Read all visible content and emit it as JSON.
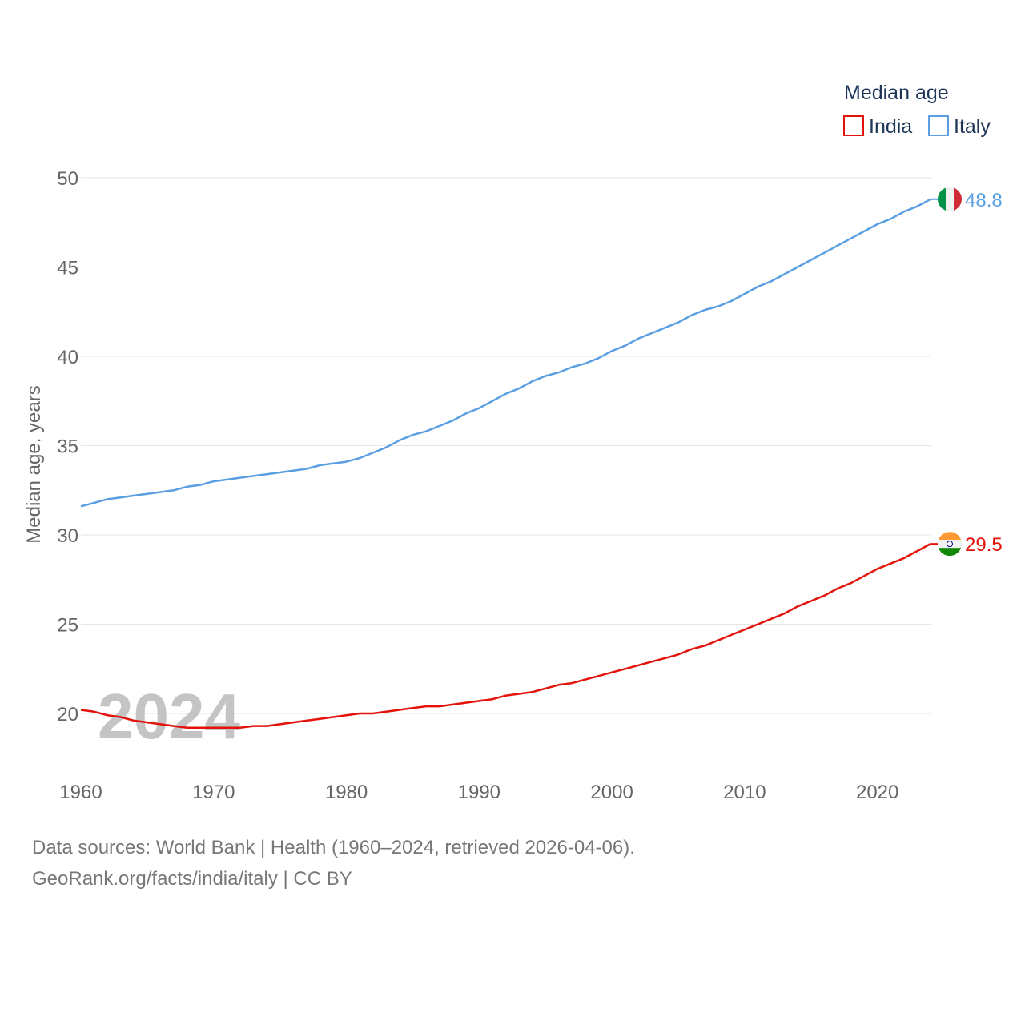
{
  "chart_data": {
    "type": "line",
    "title": "",
    "xlabel": "",
    "ylabel": "Median age, years",
    "xlim": [
      1960,
      2024
    ],
    "ylim": [
      18.5,
      50
    ],
    "yticks": [
      20,
      25,
      30,
      35,
      40,
      45,
      50
    ],
    "xticks": [
      1960,
      1970,
      1980,
      1990,
      2000,
      2010,
      2020
    ],
    "grid": true,
    "year_watermark": "2024",
    "legend": {
      "title": "Median age",
      "position": "top-right"
    },
    "x": [
      1960,
      1961,
      1962,
      1963,
      1964,
      1965,
      1966,
      1967,
      1968,
      1969,
      1970,
      1971,
      1972,
      1973,
      1974,
      1975,
      1976,
      1977,
      1978,
      1979,
      1980,
      1981,
      1982,
      1983,
      1984,
      1985,
      1986,
      1987,
      1988,
      1989,
      1990,
      1991,
      1992,
      1993,
      1994,
      1995,
      1996,
      1997,
      1998,
      1999,
      2000,
      2001,
      2002,
      2003,
      2004,
      2005,
      2006,
      2007,
      2008,
      2009,
      2010,
      2011,
      2012,
      2013,
      2014,
      2015,
      2016,
      2017,
      2018,
      2019,
      2020,
      2021,
      2022,
      2023,
      2024
    ],
    "series": [
      {
        "name": "India",
        "color": "#e3120b",
        "end_label": "29.5",
        "flag": "india",
        "values": [
          20.2,
          20.1,
          19.9,
          19.8,
          19.6,
          19.5,
          19.4,
          19.3,
          19.2,
          19.2,
          19.2,
          19.2,
          19.2,
          19.3,
          19.3,
          19.4,
          19.5,
          19.6,
          19.7,
          19.8,
          19.9,
          20.0,
          20.0,
          20.1,
          20.2,
          20.3,
          20.4,
          20.4,
          20.5,
          20.6,
          20.7,
          20.8,
          21.0,
          21.1,
          21.2,
          21.4,
          21.6,
          21.7,
          21.9,
          22.1,
          22.3,
          22.5,
          22.7,
          22.9,
          23.1,
          23.3,
          23.6,
          23.8,
          24.1,
          24.4,
          24.7,
          25.0,
          25.3,
          25.6,
          26.0,
          26.3,
          26.6,
          27.0,
          27.3,
          27.7,
          28.1,
          28.4,
          28.7,
          29.1,
          29.5
        ]
      },
      {
        "name": "Italy",
        "color": "#5b9fe3",
        "end_label": "48.8",
        "flag": "italy",
        "values": [
          31.6,
          31.8,
          32.0,
          32.1,
          32.2,
          32.3,
          32.4,
          32.5,
          32.7,
          32.8,
          33.0,
          33.1,
          33.2,
          33.3,
          33.4,
          33.5,
          33.6,
          33.7,
          33.9,
          34.0,
          34.1,
          34.3,
          34.6,
          34.9,
          35.3,
          35.6,
          35.8,
          36.1,
          36.4,
          36.8,
          37.1,
          37.5,
          37.9,
          38.2,
          38.6,
          38.9,
          39.1,
          39.4,
          39.6,
          39.9,
          40.3,
          40.6,
          41.0,
          41.3,
          41.6,
          41.9,
          42.3,
          42.6,
          42.8,
          43.1,
          43.5,
          43.9,
          44.2,
          44.6,
          45.0,
          45.4,
          45.8,
          46.2,
          46.6,
          47.0,
          47.4,
          47.7,
          48.1,
          48.4,
          48.8
        ]
      }
    ]
  },
  "footer": {
    "source": "Data sources: World Bank | Health (1960–2024, retrieved 2026-04-06).",
    "credit": "GeoRank.org/facts/india/italy | CC BY"
  }
}
